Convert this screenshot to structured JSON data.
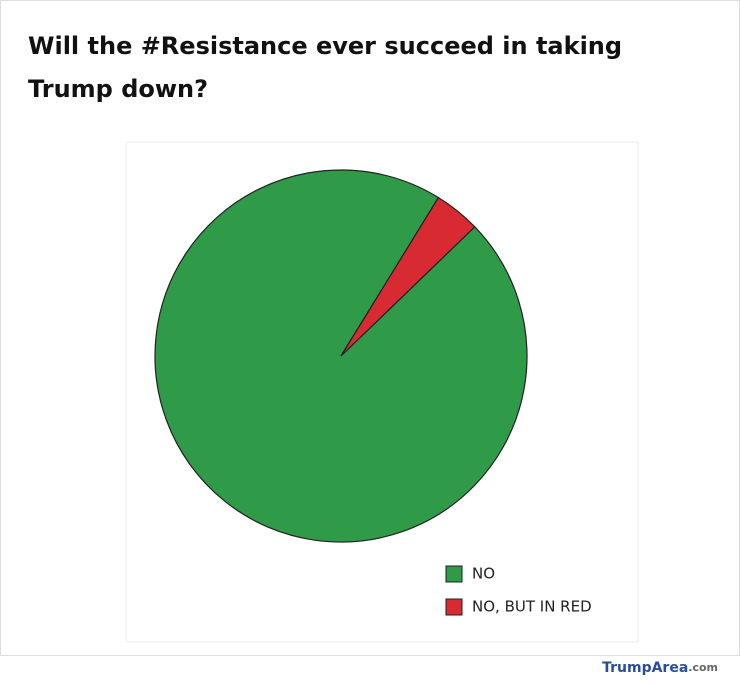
{
  "chart_data": {
    "type": "pie",
    "title_lines": [
      "Will the #Resistance ever succeed in taking",
      "Trump down?"
    ],
    "categories": [
      "NO",
      "NO, BUT IN RED"
    ],
    "values": [
      96,
      4
    ],
    "colors": [
      "#2f9a48",
      "#d82a32"
    ],
    "legend": "bottom-right"
  },
  "watermark": {
    "brand": "TrumpArea",
    "suffix": ".com"
  }
}
